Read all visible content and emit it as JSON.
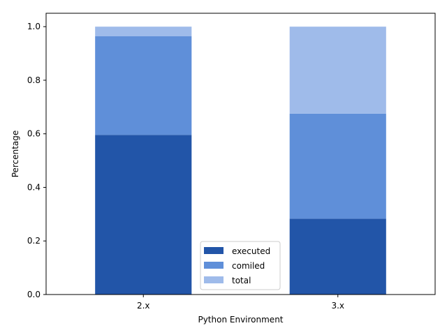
{
  "chart_data": {
    "type": "bar",
    "stacked": true,
    "categories": [
      "2.x",
      "3.x"
    ],
    "series": [
      {
        "name": "executed",
        "values": [
          0.596,
          0.283
        ],
        "color": "#2255a8"
      },
      {
        "name": "comiled",
        "values": [
          0.368,
          0.392
        ],
        "color": "#5f8fd9"
      },
      {
        "name": "total",
        "values": [
          0.036,
          0.325
        ],
        "color": "#9fbbea"
      }
    ],
    "xlabel": "Python Environment",
    "ylabel": "Percentage",
    "ylim": [
      0,
      1.05
    ],
    "yticks": [
      "0.0",
      "0.2",
      "0.4",
      "0.6",
      "0.8",
      "1.0"
    ],
    "grid": false,
    "legend_position": "bottom-center"
  }
}
